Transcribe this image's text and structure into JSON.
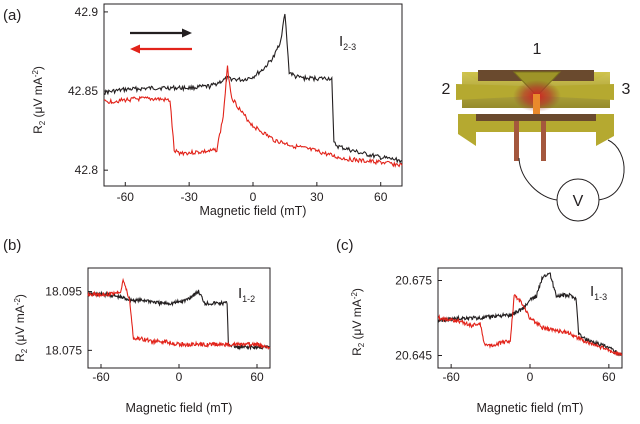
{
  "colors": {
    "black_trace": "#231f20",
    "red_trace": "#e2231a",
    "axis": "#231f20",
    "gold": "#b5a930",
    "brown": "#6a4a2e",
    "orange": "#e98a2c",
    "copper": "#a4573d"
  },
  "panel_a": {
    "label": "(a)",
    "series_label": "I",
    "series_label_sub": "2-3",
    "arrow_right_color": "black",
    "arrow_left_color": "red"
  },
  "panel_b": {
    "label": "(b)",
    "series_label": "I",
    "series_label_sub": "1-2"
  },
  "panel_c": {
    "label": "(c)",
    "series_label": "I",
    "series_label_sub": "1-3"
  },
  "device": {
    "terminal_1": "1",
    "terminal_2": "2",
    "terminal_3": "3",
    "meter_label": "V"
  },
  "ylabel": {
    "main": "R",
    "sub": "2",
    "unit": " (μV mA",
    "unit_sup": "-2",
    "close": ")"
  },
  "chart_data": [
    {
      "panel": "(a)",
      "type": "line",
      "xlabel": "Magnetic field (mT)",
      "xlim": [
        -70,
        70
      ],
      "ylim": [
        42.79,
        42.905
      ],
      "xticks": [
        -60,
        -30,
        0,
        30,
        60
      ],
      "xtick_labels": [
        "-60",
        "-30",
        "0",
        "30",
        "60"
      ],
      "yticks": [
        42.8,
        42.85,
        42.9
      ],
      "ytick_labels": [
        "42.8",
        "42.85",
        "42.9"
      ],
      "series": [
        {
          "color": "black",
          "x": [
            -70,
            -60,
            -45,
            -30,
            -20,
            -12,
            -5,
            0,
            5,
            10,
            13,
            15,
            17,
            20,
            25,
            30,
            35,
            37,
            38,
            40,
            50,
            60,
            70
          ],
          "y": [
            42.849,
            42.851,
            42.852,
            42.852,
            42.853,
            42.858,
            42.857,
            42.859,
            42.864,
            42.872,
            42.882,
            42.899,
            42.862,
            42.859,
            42.858,
            42.858,
            42.858,
            42.858,
            42.817,
            42.815,
            42.811,
            42.808,
            42.806
          ]
        },
        {
          "color": "red",
          "x": [
            -70,
            -55,
            -45,
            -39,
            -37,
            -35,
            -30,
            -20,
            -17,
            -14,
            -12,
            -10,
            -5,
            0,
            10,
            20,
            30,
            40,
            50,
            60,
            70
          ],
          "y": [
            42.843,
            42.845,
            42.845,
            42.844,
            42.812,
            42.811,
            42.811,
            42.812,
            42.813,
            42.834,
            42.865,
            42.846,
            42.836,
            42.828,
            42.819,
            42.815,
            42.812,
            42.808,
            42.806,
            42.805,
            42.803
          ]
        }
      ]
    },
    {
      "panel": "(b)",
      "type": "line",
      "xlabel": "Magnetic field (mT)",
      "xlim": [
        -70,
        70
      ],
      "ylim": [
        18.069,
        18.103
      ],
      "xticks": [
        -60,
        0,
        60
      ],
      "xtick_labels": [
        "-60",
        "0",
        "60"
      ],
      "yticks": [
        18.075,
        18.095
      ],
      "ytick_labels": [
        "18.075",
        "18.095"
      ],
      "series": [
        {
          "color": "black",
          "x": [
            -70,
            -55,
            -45,
            -35,
            -25,
            -15,
            -5,
            5,
            15,
            20,
            30,
            37,
            38,
            45,
            55,
            70
          ],
          "y": [
            18.094,
            18.094,
            18.093,
            18.092,
            18.092,
            18.091,
            18.091,
            18.092,
            18.095,
            18.091,
            18.091,
            18.091,
            18.077,
            18.076,
            18.076,
            18.076
          ]
        },
        {
          "color": "red",
          "x": [
            -70,
            -55,
            -45,
            -43,
            -38,
            -35,
            -30,
            -20,
            -10,
            0,
            10,
            20,
            30,
            40,
            50,
            60,
            70
          ],
          "y": [
            18.094,
            18.094,
            18.095,
            18.099,
            18.092,
            18.079,
            18.079,
            18.078,
            18.078,
            18.077,
            18.077,
            18.077,
            18.077,
            18.077,
            18.077,
            18.077,
            18.076
          ]
        }
      ]
    },
    {
      "panel": "(c)",
      "type": "line",
      "xlabel": "Magnetic field (mT)",
      "xlim": [
        -70,
        70
      ],
      "ylim": [
        20.64,
        20.68
      ],
      "xticks": [
        -60,
        0,
        60
      ],
      "xtick_labels": [
        "-60",
        "0",
        "60"
      ],
      "yticks": [
        20.645,
        20.675
      ],
      "ytick_labels": [
        "20.645",
        "20.675"
      ],
      "series": [
        {
          "color": "black",
          "x": [
            -70,
            -50,
            -35,
            -25,
            -15,
            -5,
            0,
            5,
            10,
            15,
            20,
            25,
            30,
            35,
            37,
            40,
            50,
            60,
            70
          ],
          "y": [
            20.659,
            20.66,
            20.66,
            20.661,
            20.661,
            20.664,
            20.667,
            20.669,
            20.677,
            20.678,
            20.669,
            20.669,
            20.669,
            20.668,
            20.654,
            20.652,
            20.65,
            20.648,
            20.645
          ]
        },
        {
          "color": "red",
          "x": [
            -70,
            -55,
            -45,
            -38,
            -35,
            -30,
            -22,
            -15,
            -12,
            -8,
            -5,
            0,
            10,
            20,
            30,
            40,
            50,
            60,
            70
          ],
          "y": [
            20.66,
            20.659,
            20.657,
            20.658,
            20.65,
            20.649,
            20.65,
            20.651,
            20.669,
            20.667,
            20.665,
            20.66,
            20.656,
            20.655,
            20.654,
            20.651,
            20.649,
            20.647,
            20.645
          ]
        }
      ]
    }
  ]
}
